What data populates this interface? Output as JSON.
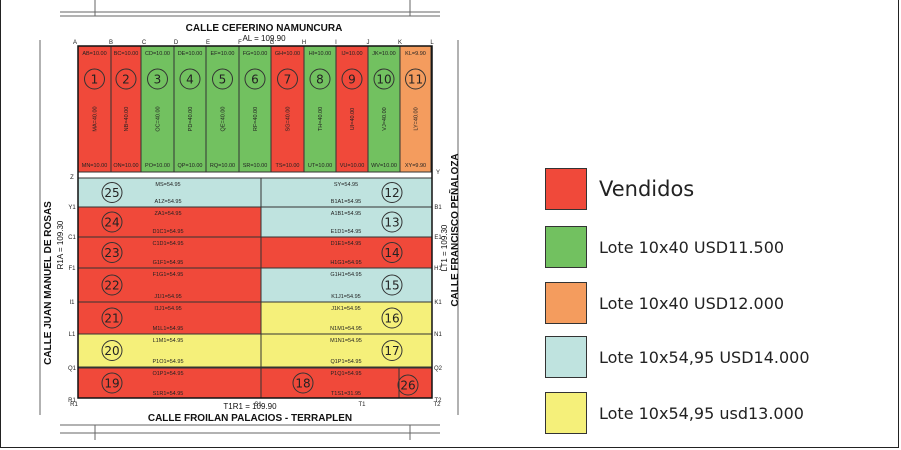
{
  "streets": {
    "north": "CALLE CEFERINO NAMUNCURA",
    "north_measure": "AL = 109.90",
    "south": "CALLE FROILAN PALACIOS - TERRAPLEN",
    "south_measure": "T1R1 = 109.90",
    "west": "CALLE JUAN MANUEL DE ROSAS",
    "west_measure": "R1A = 109.30",
    "east": "CALLE FRANCISCO PEÑALOZA",
    "east_measure": "LT1 = 109.30"
  },
  "corner_labels": {
    "top": [
      "A",
      "B",
      "C",
      "D",
      "E",
      "F",
      "G",
      "H",
      "I",
      "J",
      "K",
      "L"
    ],
    "bottom": [
      "R1",
      "S1",
      "T1",
      "T2"
    ],
    "left": [
      "Z",
      "Y1",
      "C1",
      "F1",
      "I1",
      "L1",
      "Q1",
      "R1"
    ],
    "right": [
      "Y",
      "B1",
      "E1",
      "H1",
      "K1",
      "N1",
      "Q2",
      "T2"
    ]
  },
  "lots_top": [
    {
      "num": "1",
      "status": "sold",
      "top": "AB=10.00",
      "bottom": "MN=10.00",
      "side": "MA=40.00"
    },
    {
      "num": "2",
      "status": "sold",
      "top": "BC=10.00",
      "bottom": "ON=10.00",
      "side": "NB=40.00"
    },
    {
      "num": "3",
      "status": "green",
      "top": "CD=10.00",
      "bottom": "PO=10.00",
      "side": "OC=40.00"
    },
    {
      "num": "4",
      "status": "green",
      "top": "DE=10.00",
      "bottom": "QP=10.00",
      "side": "PD=40.00"
    },
    {
      "num": "5",
      "status": "green",
      "top": "EF=10.00",
      "bottom": "RQ=10.00",
      "side": "QE=40.00"
    },
    {
      "num": "6",
      "status": "green",
      "top": "FG=10.00",
      "bottom": "SR=10.00",
      "side": "RF=40.00"
    },
    {
      "num": "7",
      "status": "sold",
      "top": "GH=10.00",
      "bottom": "TS=10.00",
      "side": "SG=40.00"
    },
    {
      "num": "8",
      "status": "green",
      "top": "HI=10.00",
      "bottom": "UT=10.00",
      "side": "TH=40.00"
    },
    {
      "num": "9",
      "status": "sold",
      "top": "IJ=10.00",
      "bottom": "VU=10.00",
      "side": "UI=40.00"
    },
    {
      "num": "10",
      "status": "green",
      "top": "JK=10.00",
      "bottom": "WV=10.00",
      "side": "VJ=40.00"
    },
    {
      "num": "11",
      "status": "orange",
      "top": "KL=9.90",
      "bottom": "XY=9.90",
      "side": "LY=40.00"
    }
  ],
  "lots_rows": [
    {
      "left": "25",
      "left_status": "teal",
      "right": "12",
      "right_status": "teal",
      "top_left": "MS=54.95",
      "top_right": "SY=54.95",
      "bottom_left": "A1Z=54.95",
      "bottom_right": "B1A1=54.95"
    },
    {
      "left": "24",
      "left_status": "sold",
      "right": "13",
      "right_status": "teal",
      "top_left": "ZA1=54.95",
      "top_right": "A1B1=54.95",
      "bottom_left": "D1C1=54.95",
      "bottom_right": "E1D1=54.95"
    },
    {
      "left": "23",
      "left_status": "sold",
      "right": "14",
      "right_status": "sold",
      "top_left": "C1D1=54.95",
      "top_right": "D1E1=54.95",
      "bottom_left": "G1F1=54.95",
      "bottom_right": "H1G1=54.95"
    },
    {
      "left": "22",
      "left_status": "sold",
      "right": "15",
      "right_status": "teal",
      "top_left": "F1G1=54.95",
      "top_right": "G1H1=54.95",
      "bottom_left": "J1I1=54.95",
      "bottom_right": "K1J1=54.95"
    },
    {
      "left": "21",
      "left_status": "sold",
      "right": "16",
      "right_status": "yellow",
      "top_left": "I1J1=54.95",
      "top_right": "J1K1=54.95",
      "bottom_left": "M1L1=54.95",
      "bottom_right": "N1M1=54.95"
    },
    {
      "left": "20",
      "left_status": "yellow",
      "right": "17",
      "right_status": "yellow",
      "top_left": "L1M1=54.95",
      "top_right": "M1N1=54.95",
      "bottom_left": "P1O1=54.95",
      "bottom_right": "Q1P1=54.95"
    }
  ],
  "lots_bottom": [
    {
      "num": "19",
      "status": "sold",
      "top": "O1P1=54.95",
      "bottom": "S1R1=54.95"
    },
    {
      "num": "18",
      "status": "sold",
      "top": "P1Q1=54.95",
      "bottom": "T1S1=31.95"
    },
    {
      "num": "26",
      "status": "sold"
    }
  ],
  "legend": [
    {
      "label": "Vendidos",
      "color": "#f0493a"
    },
    {
      "label": "Lote 10x40 USD11.500",
      "color": "#72c160"
    },
    {
      "label": "Lote 10x40 USD12.000",
      "color": "#f49c5e"
    },
    {
      "label": "Lote 10x54,95 USD14.000",
      "color": "#bfe3df"
    },
    {
      "label": "Lote 10x54,95 usd13.000",
      "color": "#f5f07a"
    }
  ],
  "colors": {
    "sold": "#f0493a",
    "green": "#72c160",
    "orange": "#f49c5e",
    "teal": "#bfe3df",
    "yellow": "#f5f07a"
  }
}
